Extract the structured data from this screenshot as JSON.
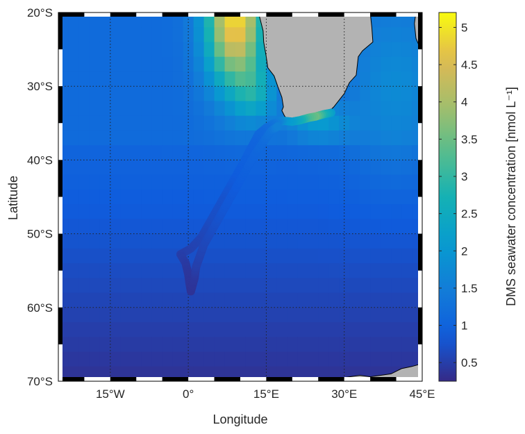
{
  "map": {
    "x_axis": {
      "label": "Longitude",
      "range": [
        -25,
        45
      ],
      "ticks": [
        {
          "value": -15,
          "label": "15°W"
        },
        {
          "value": 0,
          "label": "0°"
        },
        {
          "value": 15,
          "label": "15°E"
        },
        {
          "value": 30,
          "label": "30°E"
        },
        {
          "value": 45,
          "label": "45°E"
        }
      ]
    },
    "y_axis": {
      "label": "Latitude",
      "range": [
        -70,
        -20
      ],
      "ticks": [
        {
          "value": -20,
          "label": "20°S"
        },
        {
          "value": -30,
          "label": "30°S"
        },
        {
          "value": -40,
          "label": "40°S"
        },
        {
          "value": -50,
          "label": "50°S"
        },
        {
          "value": -60,
          "label": "60°S"
        },
        {
          "value": -70,
          "label": "70°S"
        }
      ]
    },
    "grid": true,
    "land_color": "#b3b3b3",
    "colormap": "parula",
    "colorbar": {
      "label": "DMS seawater concentration [nmol L⁻¹]",
      "range": [
        0.25,
        5.2
      ],
      "ticks": [
        {
          "value": 0.5,
          "label": "0.5"
        },
        {
          "value": 1,
          "label": "1"
        },
        {
          "value": 1.5,
          "label": "1.5"
        },
        {
          "value": 2,
          "label": "2"
        },
        {
          "value": 2.5,
          "label": "2.5"
        },
        {
          "value": 3,
          "label": "3"
        },
        {
          "value": 3.5,
          "label": "3.5"
        },
        {
          "value": 4,
          "label": "4"
        },
        {
          "value": 4.5,
          "label": "4.5"
        },
        {
          "value": 5,
          "label": "5"
        }
      ]
    },
    "cruise_track": [
      {
        "lon": 27.5,
        "lat": -33.6,
        "dms": 2.2
      },
      {
        "lon": 26.0,
        "lat": -33.8,
        "dms": 2.8
      },
      {
        "lon": 24.5,
        "lat": -34.1,
        "dms": 3.5
      },
      {
        "lon": 23.0,
        "lat": -34.3,
        "dms": 3.2
      },
      {
        "lon": 21.5,
        "lat": -34.6,
        "dms": 2.6
      },
      {
        "lon": 20.0,
        "lat": -34.8,
        "dms": 2.2
      },
      {
        "lon": 18.5,
        "lat": -34.7,
        "dms": 2.0
      },
      {
        "lon": 17.5,
        "lat": -34.8,
        "dms": 1.6
      },
      {
        "lon": 16.5,
        "lat": -35.0,
        "dms": 1.4
      },
      {
        "lon": 15.0,
        "lat": -35.6,
        "dms": 1.2
      },
      {
        "lon": 13.5,
        "lat": -36.5,
        "dms": 1.1
      },
      {
        "lon": 12.0,
        "lat": -38.5,
        "dms": 1.0
      },
      {
        "lon": 10.5,
        "lat": -40.5,
        "dms": 0.95
      },
      {
        "lon": 8.5,
        "lat": -43.0,
        "dms": 0.85
      },
      {
        "lon": 6.5,
        "lat": -45.5,
        "dms": 0.75
      },
      {
        "lon": 4.5,
        "lat": -48.0,
        "dms": 0.7
      },
      {
        "lon": 2.5,
        "lat": -50.5,
        "dms": 0.6
      },
      {
        "lon": 0.5,
        "lat": -52.0,
        "dms": 0.55
      },
      {
        "lon": -1.5,
        "lat": -52.8,
        "dms": 0.5
      },
      {
        "lon": -0.5,
        "lat": -54.0,
        "dms": 0.45
      },
      {
        "lon": 0.0,
        "lat": -55.5,
        "dms": 0.4
      },
      {
        "lon": 0.3,
        "lat": -57.0,
        "dms": 0.38
      },
      {
        "lon": 0.5,
        "lat": -57.8,
        "dms": 0.35
      },
      {
        "lon": 1.2,
        "lat": -56.0,
        "dms": 0.4
      },
      {
        "lon": 1.5,
        "lat": -54.5,
        "dms": 0.5
      },
      {
        "lon": 3.0,
        "lat": -51.5,
        "dms": 0.6
      },
      {
        "lon": 5.0,
        "lat": -49.0,
        "dms": 0.7
      },
      {
        "lon": 7.0,
        "lat": -46.5,
        "dms": 0.8
      },
      {
        "lon": 9.0,
        "lat": -44.0,
        "dms": 0.85
      },
      {
        "lon": 11.0,
        "lat": -41.5,
        "dms": 0.95
      },
      {
        "lon": 13.0,
        "lat": -39.0,
        "dms": 1.05
      },
      {
        "lon": 14.5,
        "lat": -37.5,
        "dms": 1.15
      },
      {
        "lon": 16.0,
        "lat": -36.0,
        "dms": 1.3
      },
      {
        "lon": 17.5,
        "lat": -35.3,
        "dms": 1.6
      }
    ]
  }
}
